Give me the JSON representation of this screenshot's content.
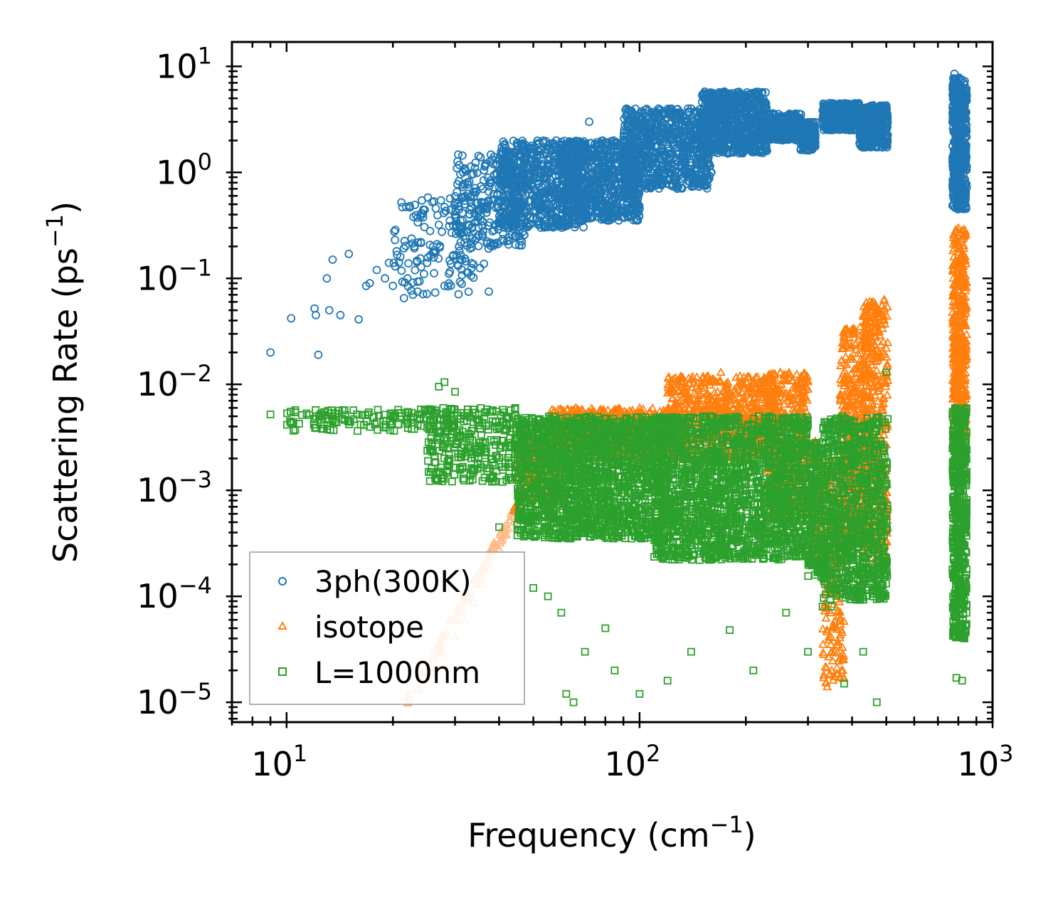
{
  "chart_data": {
    "type": "scatter",
    "title": "",
    "xlabel": "Frequency (cm",
    "xlabel_sup": "−1",
    "xlabel_end": ")",
    "ylabel": "Scattering Rate (ps",
    "ylabel_sup": "−1",
    "ylabel_end": ")",
    "xscale": "log",
    "yscale": "log",
    "xlim": [
      7,
      1000
    ],
    "ylim": [
      6.5e-06,
      17
    ],
    "x_ticks": [
      {
        "value": 10,
        "base": "10",
        "exp": "1"
      },
      {
        "value": 100,
        "base": "10",
        "exp": "2"
      },
      {
        "value": 1000,
        "base": "10",
        "exp": "3"
      }
    ],
    "y_ticks": [
      {
        "value": 10,
        "base": "10",
        "exp": "1"
      },
      {
        "value": 1,
        "base": "10",
        "exp": "0"
      },
      {
        "value": 0.1,
        "base": "10",
        "exp": "−1"
      },
      {
        "value": 0.01,
        "base": "10",
        "exp": "−2"
      },
      {
        "value": 0.001,
        "base": "10",
        "exp": "−3"
      },
      {
        "value": 0.0001,
        "base": "10",
        "exp": "−4"
      },
      {
        "value": 1e-05,
        "base": "10",
        "exp": "−5"
      }
    ],
    "legend_position": "lower-left",
    "series": [
      {
        "name": "3ph(300K)",
        "marker": "circle",
        "color": "#1f77b4",
        "points": [
          [
            9.0,
            0.02
          ],
          [
            10.3,
            0.042
          ],
          [
            12.0,
            0.052
          ],
          [
            12.1,
            0.045
          ],
          [
            12.3,
            0.019
          ],
          [
            13.0,
            0.1
          ],
          [
            13.2,
            0.05
          ],
          [
            13.5,
            0.15
          ],
          [
            14.2,
            0.045
          ],
          [
            15.0,
            0.17
          ],
          [
            16.0,
            0.041
          ],
          [
            16.8,
            0.085
          ],
          [
            17.2,
            0.09
          ],
          [
            18.0,
            0.12
          ],
          [
            19.0,
            0.1
          ],
          [
            19.5,
            0.14
          ],
          [
            20.0,
            0.085
          ],
          [
            20.3,
            0.13
          ],
          [
            20.5,
            0.18
          ],
          [
            21.0,
            0.16
          ],
          [
            21.5,
            0.065
          ],
          [
            22.0,
            0.1
          ],
          [
            22.8,
            0.07
          ],
          [
            23.0,
            0.2
          ],
          [
            23.5,
            0.075
          ],
          [
            24.0,
            0.22
          ],
          [
            24.5,
            0.11
          ],
          [
            25.0,
            0.14
          ],
          [
            25.5,
            0.28
          ],
          [
            26.0,
            0.2
          ],
          [
            27.0,
            0.32
          ],
          [
            28.0,
            0.085
          ],
          [
            29.0,
            0.35
          ],
          [
            30.0,
            0.4
          ],
          [
            31.0,
            0.15
          ],
          [
            32.0,
            0.5
          ],
          [
            33.0,
            0.25
          ],
          [
            34.0,
            0.6
          ],
          [
            35.0,
            0.3
          ],
          [
            36.0,
            0.7
          ],
          [
            37.0,
            0.45
          ],
          [
            38.0,
            0.8
          ],
          [
            40.0,
            0.55
          ],
          [
            42.0,
            1.0
          ],
          [
            44.0,
            1.2
          ],
          [
            46.0,
            1.5
          ],
          [
            48.0,
            1.7
          ],
          [
            50.0,
            0.9
          ],
          [
            52.0,
            1.9
          ],
          [
            55.0,
            1.3
          ],
          [
            58.0,
            2.0
          ],
          [
            60.0,
            0.6
          ],
          [
            65.0,
            1.2
          ],
          [
            72.0,
            3.0
          ],
          [
            75.0,
            0.5
          ],
          [
            80.0,
            1.0
          ],
          [
            88.0,
            1.7
          ],
          [
            95.0,
            2.1
          ],
          [
            100.0,
            3.4
          ],
          [
            110.0,
            2.8
          ],
          [
            120.0,
            3.3
          ],
          [
            140.0,
            4.0
          ],
          [
            160.0,
            4.8
          ],
          [
            180.0,
            5.5
          ],
          [
            200.0,
            5.0
          ],
          [
            220.0,
            3.5
          ],
          [
            240.0,
            3.0
          ],
          [
            270.0,
            2.6
          ],
          [
            300.0,
            1.9
          ],
          [
            330.0,
            3.2
          ],
          [
            380.0,
            3.8
          ],
          [
            420.0,
            2.5
          ],
          [
            460.0,
            1.9
          ],
          [
            500.0,
            3.5
          ],
          [
            780.0,
            8.5
          ],
          [
            800.0,
            0.45
          ],
          [
            820.0,
            3.0
          ],
          [
            840.0,
            1.2
          ]
        ],
        "bands": [
          {
            "x0": 20,
            "x1": 38,
            "lo": 0.07,
            "hi": 0.6,
            "n": 140
          },
          {
            "x0": 30,
            "x1": 48,
            "lo": 0.2,
            "hi": 1.5,
            "n": 240
          },
          {
            "x0": 40,
            "x1": 70,
            "lo": 0.3,
            "hi": 2.0,
            "n": 700
          },
          {
            "x0": 60,
            "x1": 100,
            "lo": 0.35,
            "hi": 2.0,
            "n": 700
          },
          {
            "x0": 90,
            "x1": 160,
            "lo": 0.7,
            "hi": 4.0,
            "n": 800
          },
          {
            "x0": 150,
            "x1": 230,
            "lo": 1.5,
            "hi": 5.8,
            "n": 700
          },
          {
            "x0": 220,
            "x1": 290,
            "lo": 2.0,
            "hi": 3.6,
            "n": 350
          },
          {
            "x0": 285,
            "x1": 315,
            "lo": 1.6,
            "hi": 3.0,
            "n": 200
          },
          {
            "x0": 330,
            "x1": 420,
            "lo": 2.5,
            "hi": 4.5,
            "n": 350
          },
          {
            "x0": 420,
            "x1": 505,
            "lo": 1.7,
            "hi": 4.3,
            "n": 350
          },
          {
            "x0": 770,
            "x1": 845,
            "lo": 0.45,
            "hi": 8.0,
            "n": 500
          }
        ]
      },
      {
        "name": "isotope",
        "marker": "triangle",
        "color": "#ff7f0e",
        "light_color": "#ffbb88",
        "points": [
          [
            22.0,
            9.8e-06
          ],
          [
            24.0,
            1.3e-05
          ],
          [
            26.0,
            1.9e-05
          ],
          [
            28.0,
            2.8e-05
          ],
          [
            30.0,
            4.2e-05
          ],
          [
            32.0,
            6e-05
          ],
          [
            34.0,
            8.8e-05
          ],
          [
            36.0,
            0.00013
          ],
          [
            38.0,
            0.00019
          ],
          [
            40.0,
            0.00028
          ],
          [
            42.0,
            0.00038
          ],
          [
            44.0,
            0.0005
          ],
          [
            46.0,
            0.0008
          ],
          [
            48.0,
            0.0012
          ],
          [
            50.0,
            0.0015
          ],
          [
            56.0,
            0.0025
          ],
          [
            70.0,
            0.004
          ],
          [
            100.0,
            0.006
          ],
          [
            170.0,
            0.013
          ],
          [
            260.0,
            0.011
          ],
          [
            300.0,
            0.009
          ],
          [
            340.0,
            1.4e-05
          ],
          [
            350.0,
            2e-05
          ],
          [
            380.0,
            0.011
          ],
          [
            460.0,
            0.06
          ],
          [
            800.0,
            0.3
          ],
          [
            820.0,
            0.01
          ]
        ],
        "bands": [
          {
            "x0": 45,
            "x1": 60,
            "lo": 0.0008,
            "hi": 0.003,
            "n": 250
          },
          {
            "x0": 55,
            "x1": 130,
            "lo": 0.002,
            "hi": 0.006,
            "n": 700
          },
          {
            "x0": 120,
            "x1": 240,
            "lo": 0.002,
            "hi": 0.012,
            "n": 700
          },
          {
            "x0": 230,
            "x1": 300,
            "lo": 0.0005,
            "hi": 0.013,
            "n": 450
          },
          {
            "x0": 300,
            "x1": 330,
            "lo": 0.0002,
            "hi": 0.003,
            "n": 150
          },
          {
            "x0": 330,
            "x1": 380,
            "lo": 1.4e-05,
            "hi": 0.002,
            "n": 200
          },
          {
            "x0": 370,
            "x1": 440,
            "lo": 0.0003,
            "hi": 0.035,
            "n": 450
          },
          {
            "x0": 430,
            "x1": 505,
            "lo": 0.0002,
            "hi": 0.065,
            "n": 450
          },
          {
            "x0": 770,
            "x1": 845,
            "lo": 0.003,
            "hi": 0.3,
            "n": 450
          }
        ]
      },
      {
        "name": "L=1000nm",
        "marker": "square",
        "color": "#2ca02c",
        "points": [
          [
            9.0,
            0.0052
          ],
          [
            10.3,
            0.0043
          ],
          [
            12.0,
            0.0047
          ],
          [
            13.5,
            0.0046
          ],
          [
            15.0,
            0.0045
          ],
          [
            18.0,
            0.0044
          ],
          [
            20.0,
            0.0048
          ],
          [
            22.0,
            0.0055
          ],
          [
            24.0,
            0.0058
          ],
          [
            27.0,
            0.0095
          ],
          [
            28.0,
            0.0105
          ],
          [
            30.0,
            0.0085
          ],
          [
            35.0,
            0.002
          ],
          [
            38.0,
            0.0013
          ],
          [
            40.0,
            0.00045
          ],
          [
            50.0,
            0.00012
          ],
          [
            55.0,
            0.0001
          ],
          [
            60.0,
            7e-05
          ],
          [
            62.0,
            1.2e-05
          ],
          [
            65.0,
            1e-05
          ],
          [
            70.0,
            3e-05
          ],
          [
            80.0,
            5e-05
          ],
          [
            85.0,
            2e-05
          ],
          [
            100.0,
            1.2e-05
          ],
          [
            120.0,
            1.6e-05
          ],
          [
            140.0,
            3e-05
          ],
          [
            180.0,
            4.8e-05
          ],
          [
            210.0,
            2e-05
          ],
          [
            260.0,
            7e-05
          ],
          [
            300.0,
            3e-05
          ],
          [
            330.0,
            8e-05
          ],
          [
            350.0,
            8e-05
          ],
          [
            380.0,
            1.5e-05
          ],
          [
            430.0,
            3e-05
          ],
          [
            470.0,
            1e-05
          ],
          [
            500.0,
            0.013
          ],
          [
            790.0,
            1.7e-05
          ],
          [
            820.0,
            1.6e-05
          ]
        ],
        "bands": [
          {
            "x0": 10,
            "x1": 30,
            "lo": 0.0036,
            "hi": 0.0058,
            "n": 140
          },
          {
            "x0": 25,
            "x1": 45,
            "lo": 0.0012,
            "hi": 0.006,
            "n": 300
          },
          {
            "x0": 45,
            "x1": 120,
            "lo": 0.00035,
            "hi": 0.005,
            "n": 1800
          },
          {
            "x0": 110,
            "x1": 300,
            "lo": 0.00022,
            "hi": 0.005,
            "n": 1900
          },
          {
            "x0": 300,
            "x1": 330,
            "lo": 0.00015,
            "hi": 0.003,
            "n": 200
          },
          {
            "x0": 330,
            "x1": 505,
            "lo": 9e-05,
            "hi": 0.005,
            "n": 900
          },
          {
            "x0": 770,
            "x1": 845,
            "lo": 4e-05,
            "hi": 0.006,
            "n": 550
          }
        ]
      }
    ]
  }
}
